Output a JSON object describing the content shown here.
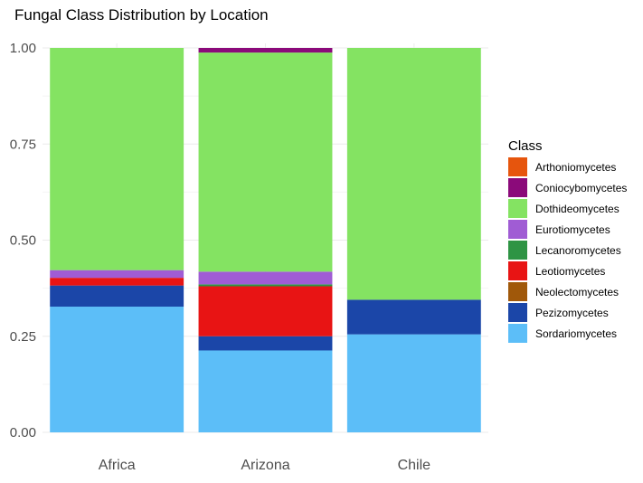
{
  "chart_data": {
    "type": "bar",
    "stacked": true,
    "title": "Fungal Class Distribution by Location",
    "xlabel": "",
    "ylabel": "",
    "ylim": [
      0,
      1
    ],
    "yticks": [
      "0.00",
      "0.25",
      "0.50",
      "0.75",
      "1.00"
    ],
    "categories": [
      "Africa",
      "Arizona",
      "Chile"
    ],
    "legend_title": "Class",
    "legend_position": "right",
    "grid": true,
    "series": [
      {
        "name": "Arthoniomycetes",
        "color": "#E6550D",
        "values": [
          0.0,
          0.0,
          0.0
        ]
      },
      {
        "name": "Coniocybomycetes",
        "color": "#8B0A7A",
        "values": [
          0.0,
          0.012,
          0.0
        ]
      },
      {
        "name": "Dothideomycetes",
        "color": "#84E362",
        "values": [
          0.578,
          0.57,
          0.655
        ]
      },
      {
        "name": "Eurotiomycetes",
        "color": "#A05CD4",
        "values": [
          0.02,
          0.033,
          0.0
        ]
      },
      {
        "name": "Lecanoromycetes",
        "color": "#2E9444",
        "values": [
          0.0,
          0.005,
          0.0
        ]
      },
      {
        "name": "Leotiomycetes",
        "color": "#E81414",
        "values": [
          0.02,
          0.13,
          0.0
        ]
      },
      {
        "name": "Neolectomycetes",
        "color": "#A0580A",
        "values": [
          0.0,
          0.0,
          0.0
        ]
      },
      {
        "name": "Pezizomycetes",
        "color": "#1B46A8",
        "values": [
          0.055,
          0.037,
          0.09
        ]
      },
      {
        "name": "Sordariomycetes",
        "color": "#5CBEF8",
        "values": [
          0.327,
          0.213,
          0.255
        ]
      }
    ]
  }
}
